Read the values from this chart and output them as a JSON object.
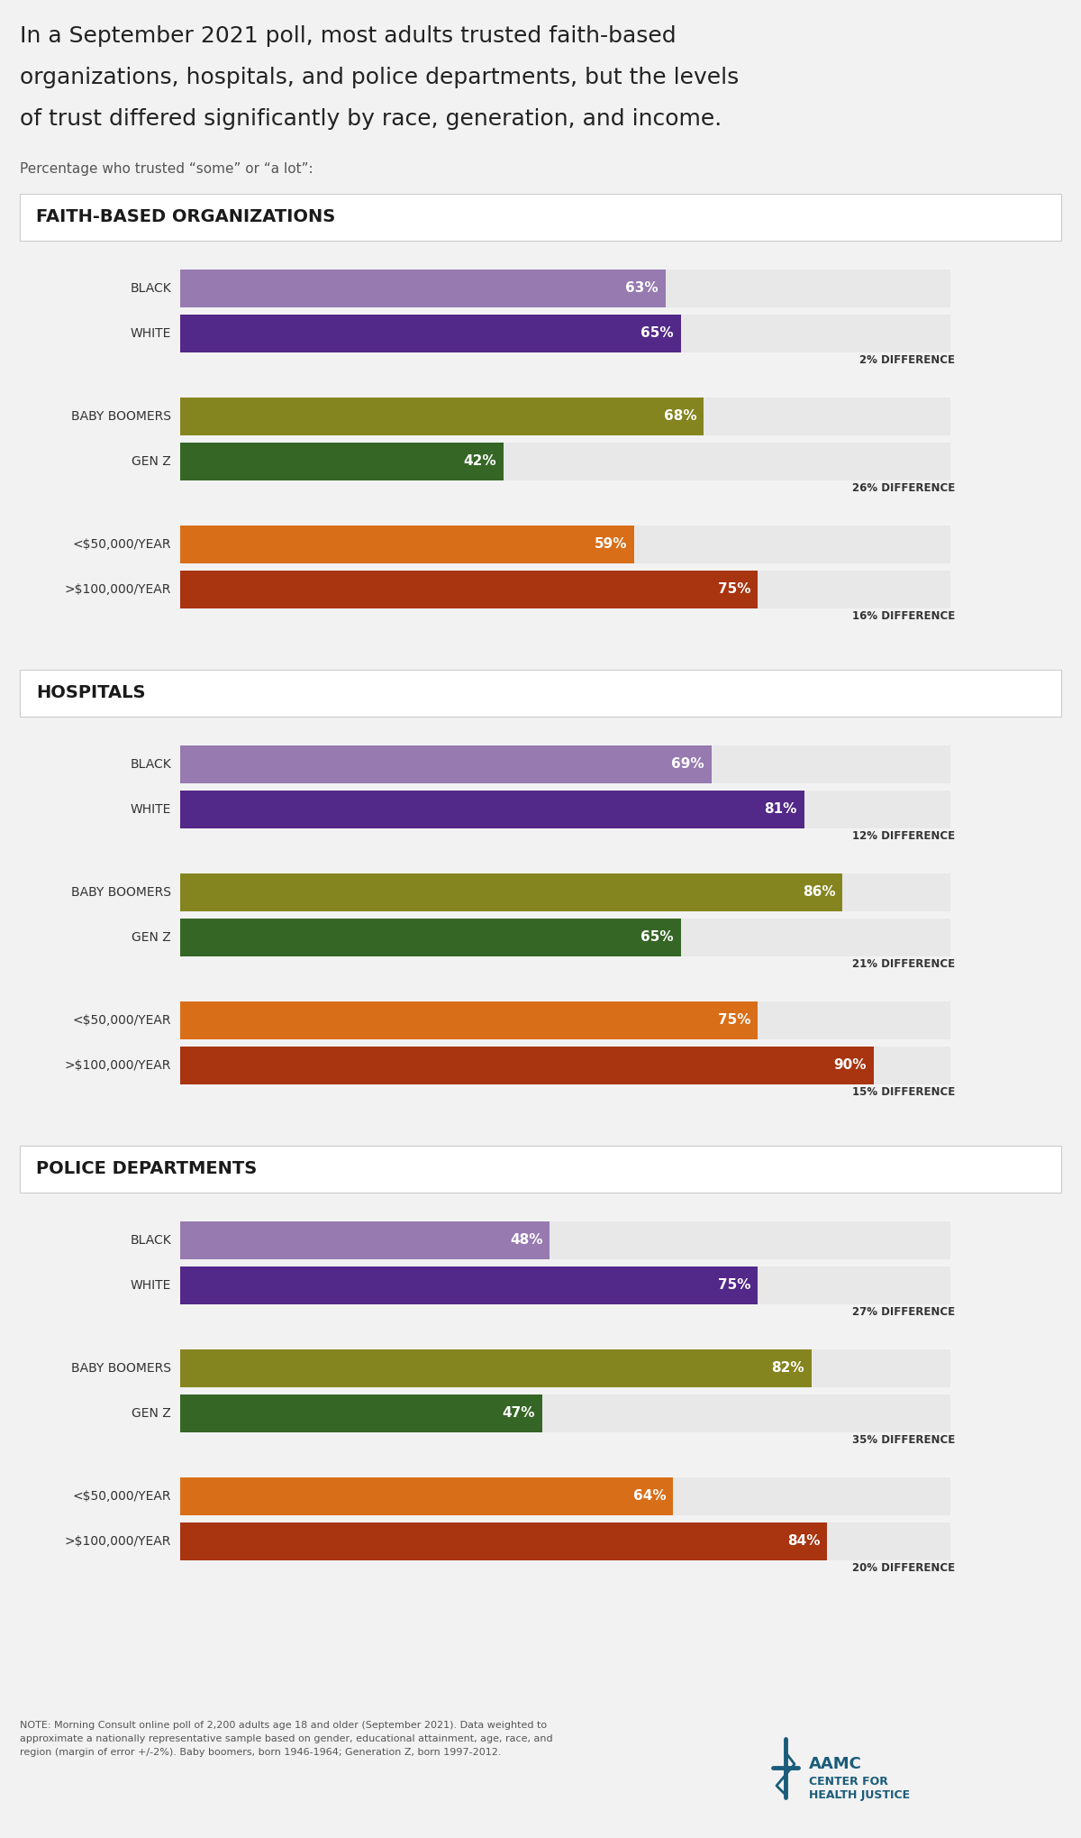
{
  "title_line1": "In a September 2021 poll, most adults trusted faith-based",
  "title_line2": "organizations, hospitals, and police departments, but the levels",
  "title_line3": "of trust differed significantly by race, generation, and income.",
  "subtitle": "Percentage who trusted “some” or “a lot”:",
  "background_color": "#f2f2f2",
  "panel_background": "#ffffff",
  "bar_background": "#e8e8e8",
  "sections": [
    {
      "title": "FAITH-BASED ORGANIZATIONS",
      "groups": [
        {
          "bars": [
            {
              "label": "BLACK",
              "value": 63,
              "color": "#967ab0"
            },
            {
              "label": "WHITE",
              "value": 65,
              "color": "#522888"
            }
          ],
          "difference": "2% DIFFERENCE"
        },
        {
          "bars": [
            {
              "label": "BABY BOOMERS",
              "value": 68,
              "color": "#858520"
            },
            {
              "label": "GEN Z",
              "value": 42,
              "color": "#356625"
            }
          ],
          "difference": "26% DIFFERENCE"
        },
        {
          "bars": [
            {
              "label": "<$50,000/YEAR",
              "value": 59,
              "color": "#d96e18"
            },
            {
              "label": ">$100,000/YEAR",
              "value": 75,
              "color": "#a83410"
            }
          ],
          "difference": "16% DIFFERENCE"
        }
      ]
    },
    {
      "title": "HOSPITALS",
      "groups": [
        {
          "bars": [
            {
              "label": "BLACK",
              "value": 69,
              "color": "#967ab0"
            },
            {
              "label": "WHITE",
              "value": 81,
              "color": "#522888"
            }
          ],
          "difference": "12% DIFFERENCE"
        },
        {
          "bars": [
            {
              "label": "BABY BOOMERS",
              "value": 86,
              "color": "#858520"
            },
            {
              "label": "GEN Z",
              "value": 65,
              "color": "#356625"
            }
          ],
          "difference": "21% DIFFERENCE"
        },
        {
          "bars": [
            {
              "label": "<$50,000/YEAR",
              "value": 75,
              "color": "#d96e18"
            },
            {
              "label": ">$100,000/YEAR",
              "value": 90,
              "color": "#a83410"
            }
          ],
          "difference": "15% DIFFERENCE"
        }
      ]
    },
    {
      "title": "POLICE DEPARTMENTS",
      "groups": [
        {
          "bars": [
            {
              "label": "BLACK",
              "value": 48,
              "color": "#967ab0"
            },
            {
              "label": "WHITE",
              "value": 75,
              "color": "#522888"
            }
          ],
          "difference": "27% DIFFERENCE"
        },
        {
          "bars": [
            {
              "label": "BABY BOOMERS",
              "value": 82,
              "color": "#858520"
            },
            {
              "label": "GEN Z",
              "value": 47,
              "color": "#356625"
            }
          ],
          "difference": "35% DIFFERENCE"
        },
        {
          "bars": [
            {
              "label": "<$50,000/YEAR",
              "value": 64,
              "color": "#d96e18"
            },
            {
              "label": ">$100,000/YEAR",
              "value": 84,
              "color": "#a83410"
            }
          ],
          "difference": "20% DIFFERENCE"
        }
      ]
    }
  ],
  "note": "NOTE: Morning Consult online poll of 2,200 adults age 18 and older (September 2021). Data weighted to\napproximate a nationally representative sample based on gender, educational attainment, age, race, and\nregion (margin of error +/-2%). Baby boomers, born 1946-1964; Generation Z, born 1997-2012.",
  "max_value": 100
}
